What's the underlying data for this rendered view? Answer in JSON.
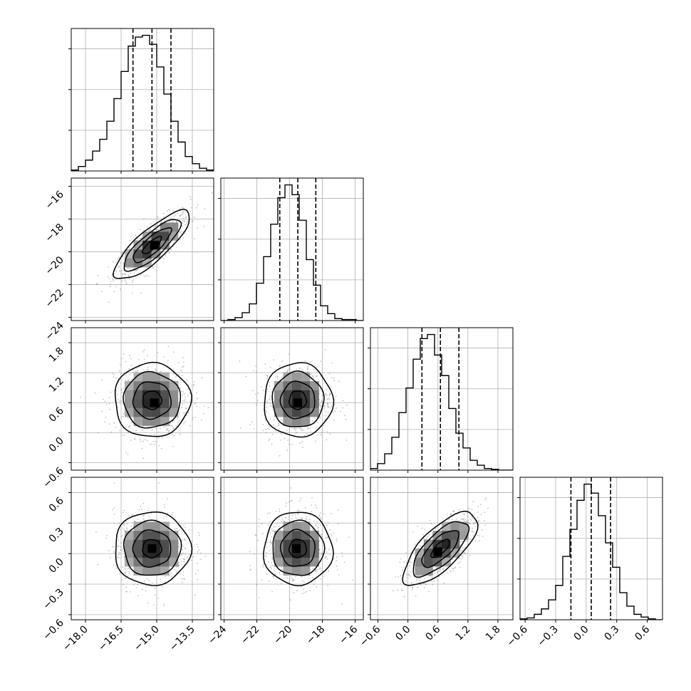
{
  "chart_data": {
    "type": "corner",
    "parameters": [
      {
        "range": [
          -18.6,
          -12.6
        ],
        "ticks": [
          -18.0,
          -16.5,
          -15.0,
          -13.5
        ],
        "tick_labels": [
          "−18.0",
          "−16.5",
          "−15.0",
          "−13.5"
        ],
        "quantiles": [
          -16.0,
          -15.2,
          -14.4
        ]
      },
      {
        "range": [
          -24.2,
          -15.5
        ],
        "ticks": [
          -24,
          -22,
          -20,
          -18,
          -16
        ],
        "tick_labels": [
          "−24",
          "−22",
          "−20",
          "−18",
          "−16"
        ],
        "quantiles": [
          -20.6,
          -19.5,
          -18.4
        ]
      },
      {
        "range": [
          -0.75,
          2.1
        ],
        "ticks": [
          -0.6,
          0.0,
          0.6,
          1.2,
          1.8
        ],
        "tick_labels": [
          "−0.6",
          "0.0",
          "0.6",
          "1.2",
          "1.8"
        ],
        "quantiles": [
          0.28,
          0.65,
          1.02
        ]
      },
      {
        "range": [
          -0.65,
          0.75
        ],
        "ticks": [
          -0.6,
          -0.3,
          0.0,
          0.3,
          0.6
        ],
        "tick_labels": [
          "−0.6",
          "−0.3",
          "0.0",
          "0.3",
          "0.6"
        ],
        "quantiles": [
          -0.15,
          0.05,
          0.24
        ]
      }
    ],
    "histograms": [
      {
        "edges_range": [
          -18.6,
          -12.6
        ],
        "counts": [
          1,
          5,
          12,
          22,
          35,
          55,
          80,
          110,
          138,
          148,
          150,
          140,
          115,
          85,
          55,
          32,
          16,
          8,
          3,
          1
        ]
      },
      {
        "edges_range": [
          -24.2,
          -15.5
        ],
        "counts": [
          0,
          1,
          3,
          8,
          17,
          38,
          65,
          98,
          125,
          138,
          128,
          102,
          62,
          36,
          15,
          7,
          2,
          1,
          1,
          0
        ]
      },
      {
        "edges_range": [
          -0.75,
          2.1
        ],
        "counts": [
          2,
          8,
          20,
          40,
          70,
          100,
          135,
          160,
          165,
          140,
          115,
          75,
          45,
          27,
          12,
          6,
          2,
          1,
          0,
          0
        ]
      },
      {
        "edges_range": [
          -0.65,
          0.75
        ],
        "counts": [
          1,
          2,
          6,
          12,
          22,
          38,
          70,
          100,
          132,
          150,
          140,
          115,
          85,
          58,
          30,
          15,
          6,
          3,
          1,
          0
        ]
      }
    ],
    "pairs": [
      {
        "row": 1,
        "col": 0,
        "center": [
          -15.2,
          -19.6
        ],
        "sigma": [
          0.8,
          1.05
        ],
        "correlation": 0.82,
        "peak": [
          -15.1,
          -19.6
        ]
      },
      {
        "row": 2,
        "col": 0,
        "center": [
          -15.2,
          0.65
        ],
        "sigma": [
          0.8,
          0.37
        ],
        "correlation": 0.0,
        "peak": [
          -15.1,
          0.6
        ]
      },
      {
        "row": 2,
        "col": 1,
        "center": [
          -19.5,
          0.65
        ],
        "sigma": [
          1.05,
          0.37
        ],
        "correlation": 0.0,
        "peak": [
          -19.5,
          0.6
        ]
      },
      {
        "row": 3,
        "col": 0,
        "center": [
          -15.2,
          0.05
        ],
        "sigma": [
          0.8,
          0.18
        ],
        "correlation": 0.0,
        "peak": [
          -15.2,
          0.05
        ]
      },
      {
        "row": 3,
        "col": 1,
        "center": [
          -19.5,
          0.05
        ],
        "sigma": [
          1.05,
          0.18
        ],
        "correlation": 0.0,
        "peak": [
          -19.6,
          0.05
        ]
      },
      {
        "row": 3,
        "col": 2,
        "center": [
          0.65,
          0.05
        ],
        "sigma": [
          0.37,
          0.18
        ],
        "correlation": 0.72,
        "peak": [
          0.6,
          0.02
        ]
      }
    ],
    "contour_levels_sigma": [
      0.5,
      1.0,
      1.5,
      2.0
    ],
    "grid": true,
    "colors": {
      "line": "#000000",
      "grid": "#b0b0b0",
      "scatter": "#777777"
    }
  }
}
